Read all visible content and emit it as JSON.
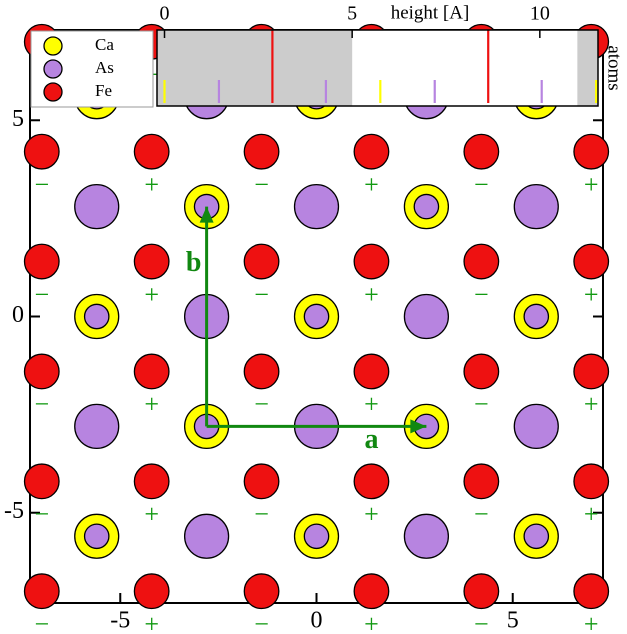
{
  "chart_data": [
    {
      "type": "scatter",
      "xlim": [
        -7.3,
        7.3
      ],
      "ylim": [
        -7.3,
        7.3
      ],
      "xticks": [
        -5,
        0,
        5
      ],
      "yticks": [
        -5,
        0,
        5
      ],
      "series": [
        {
          "name": "Ca",
          "color": "#ffff00",
          "x": [
            -5.6,
            0,
            5.6,
            -2.8,
            2.8,
            -5.6,
            0,
            5.6,
            -2.8,
            2.8,
            -5.6,
            0,
            5.6
          ],
          "y": [
            5.6,
            5.6,
            5.6,
            2.8,
            2.8,
            0,
            0,
            0,
            -2.8,
            -2.8,
            -5.6,
            -5.6,
            -5.6
          ]
        },
        {
          "name": "As",
          "color": "#b784e0",
          "x": [
            -5.6,
            -2.8,
            0,
            2.8,
            5.6,
            -5.6,
            -2.8,
            0,
            2.8,
            5.6,
            -5.6,
            -2.8,
            0,
            2.8,
            5.6,
            -5.6,
            -2.8,
            0,
            2.8,
            5.6,
            -5.6,
            -2.8,
            0,
            2.8,
            5.6
          ],
          "y": [
            5.6,
            5.6,
            5.6,
            5.6,
            5.6,
            2.8,
            2.8,
            2.8,
            2.8,
            2.8,
            0,
            0,
            0,
            0,
            0,
            -2.8,
            -2.8,
            -2.8,
            -2.8,
            -2.8,
            -5.6,
            -5.6,
            -5.6,
            -5.6,
            -5.6
          ]
        },
        {
          "name": "Fe",
          "color": "#ee1111",
          "x": [
            -7,
            -4.2,
            -1.4,
            1.4,
            4.2,
            7,
            -7,
            -4.2,
            -1.4,
            1.4,
            4.2,
            7,
            -7,
            -4.2,
            -1.4,
            1.4,
            4.2,
            7,
            -7,
            -4.2,
            -1.4,
            1.4,
            4.2,
            7,
            -7,
            -4.2,
            -1.4,
            1.4,
            4.2,
            7,
            -7,
            -4.2,
            -1.4,
            1.4,
            4.2,
            7
          ],
          "y": [
            7,
            7,
            7,
            7,
            7,
            7,
            4.2,
            4.2,
            4.2,
            4.2,
            4.2,
            4.2,
            1.4,
            1.4,
            1.4,
            1.4,
            1.4,
            1.4,
            -1.4,
            -1.4,
            -1.4,
            -1.4,
            -1.4,
            -1.4,
            -4.2,
            -4.2,
            -4.2,
            -4.2,
            -4.2,
            -4.2,
            -7,
            -7,
            -7,
            -7,
            -7,
            -7
          ],
          "labels": [
            "−",
            "+",
            "−",
            "+",
            "−",
            "+",
            "−",
            "+",
            "−",
            "+",
            "−",
            "+",
            "−",
            "+",
            "−",
            "+",
            "−",
            "+",
            "−",
            "+",
            "−",
            "+",
            "−",
            "+",
            "−",
            "+",
            "−",
            "+",
            "−",
            "+",
            "−",
            "+",
            "−",
            "+",
            "−",
            "+"
          ]
        }
      ],
      "arrows": [
        {
          "label": "a",
          "color": "#118811",
          "x": [
            -2.8,
            2.8
          ],
          "y": [
            -2.8,
            -2.8
          ]
        },
        {
          "label": "b",
          "color": "#118811",
          "x": [
            -2.8,
            -2.8
          ],
          "y": [
            -2.8,
            2.8
          ]
        }
      ],
      "legend": "upper left"
    },
    {
      "type": "rug",
      "xlabel": "height [A]",
      "ylabel": "atoms",
      "xlim": [
        -0.2,
        11.55
      ],
      "xticks": [
        0,
        5,
        10
      ],
      "shaded": [
        [
          -0.2,
          5.0
        ],
        [
          11.0,
          11.55
        ]
      ],
      "series": [
        {
          "color": "#ffff00",
          "values": [
            0,
            5.75,
            11.5
          ],
          "full_height": false
        },
        {
          "color": "#b784e0",
          "values": [
            1.45,
            4.3,
            7.2,
            10.05
          ],
          "full_height": false
        },
        {
          "color": "#ee1111",
          "values": [
            2.875,
            8.625
          ],
          "full_height": true
        }
      ]
    }
  ]
}
